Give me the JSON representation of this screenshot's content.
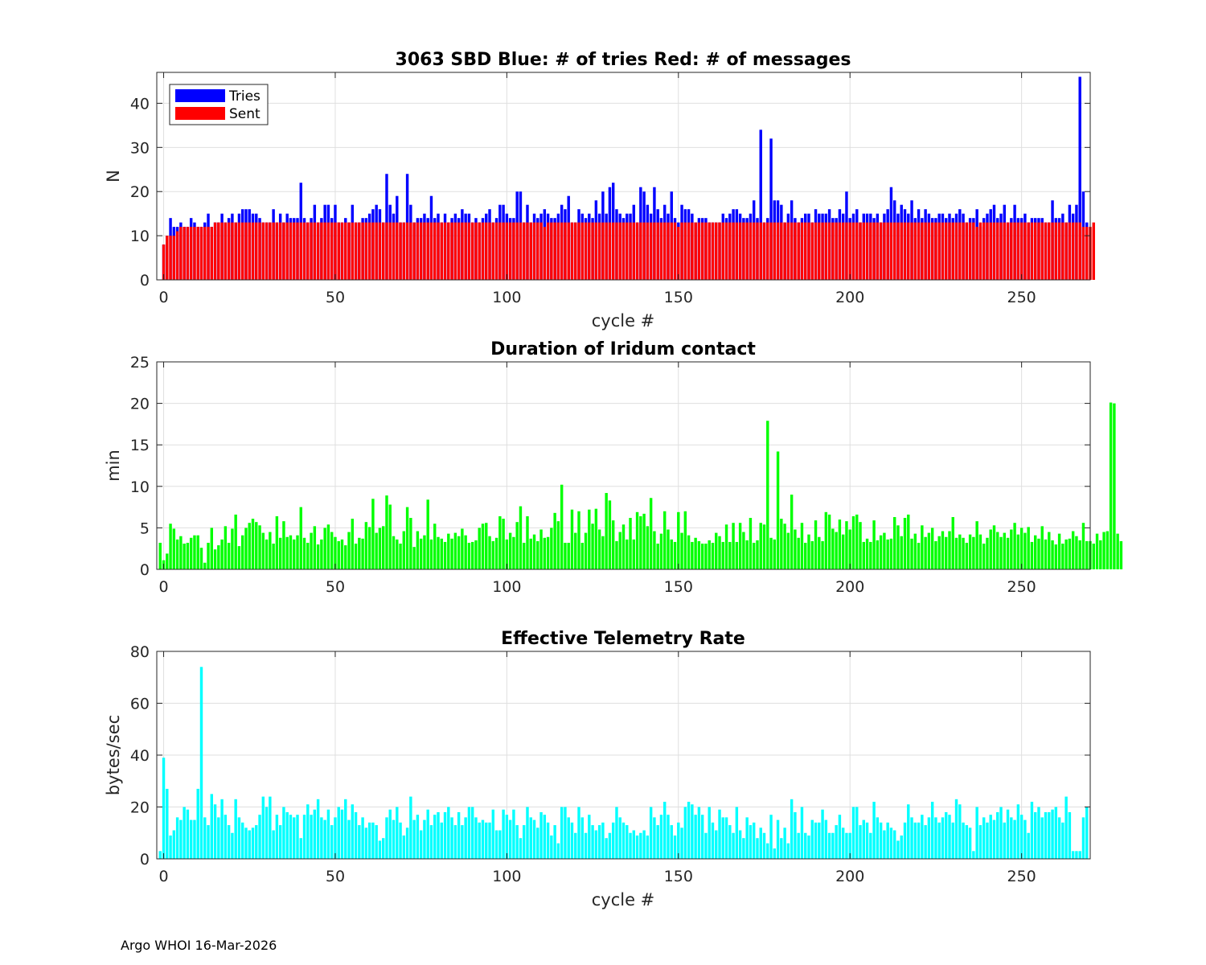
{
  "footer": "Argo WHOI 16-Mar-2026",
  "colors": {
    "tries": "#0000ff",
    "sent": "#ff0000",
    "duration": "#00ff00",
    "rate": "#00ffff"
  },
  "chart_data": [
    {
      "type": "bar",
      "title": "3063 SBD  Blue: # of tries   Red: # of messages",
      "xlabel": "cycle #",
      "ylabel": "N",
      "xlim": [
        -2,
        270
      ],
      "ylim": [
        0,
        47
      ],
      "xticks": [
        0,
        50,
        100,
        150,
        200,
        250
      ],
      "yticks": [
        0,
        10,
        20,
        30,
        40
      ],
      "grid": true,
      "legend": {
        "position": "top-left",
        "entries": [
          "Tries",
          "Sent"
        ]
      },
      "x_start": 0,
      "series": [
        {
          "name": "Tries",
          "color": "#0000ff",
          "values": [
            8,
            10,
            14,
            12,
            12,
            13,
            12,
            12,
            14,
            13,
            12,
            12,
            13,
            15,
            12,
            13,
            13,
            15,
            13,
            14,
            15,
            13,
            15,
            16,
            16,
            16,
            15,
            15,
            14,
            13,
            13,
            13,
            16,
            13,
            15,
            13,
            15,
            14,
            14,
            14,
            22,
            14,
            13,
            14,
            17,
            13,
            14,
            17,
            17,
            14,
            17,
            13,
            13,
            14,
            13,
            17,
            13,
            13,
            14,
            14,
            15,
            16,
            17,
            16,
            13,
            24,
            17,
            15,
            19,
            13,
            13,
            24,
            17,
            13,
            14,
            14,
            15,
            14,
            19,
            14,
            15,
            13,
            15,
            13,
            14,
            15,
            14,
            16,
            15,
            15,
            13,
            14,
            13,
            14,
            15,
            16,
            13,
            14,
            17,
            17,
            15,
            14,
            14,
            20,
            20,
            13,
            17,
            13,
            15,
            14,
            15,
            16,
            15,
            14,
            14,
            15,
            17,
            16,
            19,
            13,
            13,
            16,
            15,
            14,
            15,
            14,
            18,
            15,
            20,
            15,
            21,
            22,
            16,
            15,
            14,
            15,
            15,
            17,
            13,
            21,
            20,
            17,
            15,
            21,
            16,
            14,
            17,
            15,
            20,
            14,
            13,
            17,
            16,
            16,
            15,
            13,
            14,
            14,
            14,
            13,
            13,
            13,
            13,
            15,
            14,
            15,
            16,
            16,
            15,
            14,
            14,
            15,
            18,
            14,
            34,
            13,
            14,
            32,
            18,
            18,
            17,
            13,
            15,
            18,
            14,
            13,
            14,
            15,
            15,
            13,
            16,
            15,
            15,
            15,
            16,
            14,
            14,
            16,
            15,
            20,
            14,
            15,
            16,
            13,
            15,
            15,
            15,
            14,
            15,
            13,
            15,
            16,
            21,
            18,
            15,
            17,
            16,
            15,
            18,
            14,
            16,
            14,
            16,
            15,
            14,
            14,
            15,
            15,
            14,
            15,
            14,
            15,
            16,
            15,
            13,
            14,
            14,
            16,
            12,
            14,
            15,
            16,
            17,
            14,
            15,
            17,
            13,
            14,
            17,
            14,
            14,
            15,
            13,
            14,
            14,
            14,
            14,
            13,
            13,
            18,
            14,
            14,
            15,
            13,
            17,
            15,
            17,
            46,
            20,
            13
          ]
        },
        {
          "name": "Sent",
          "color": "#ff0000",
          "values": [
            8,
            10,
            10,
            10,
            11,
            12,
            12,
            12,
            12,
            12,
            12,
            12,
            12,
            12,
            12,
            13,
            13,
            13,
            13,
            13,
            13,
            13,
            13,
            13,
            13,
            13,
            13,
            13,
            13,
            13,
            13,
            13,
            13,
            13,
            13,
            13,
            13,
            13,
            13,
            13,
            13,
            13,
            13,
            13,
            13,
            13,
            13,
            13,
            13,
            13,
            13,
            13,
            13,
            13,
            13,
            13,
            13,
            13,
            13,
            13,
            13,
            13,
            13,
            13,
            13,
            13,
            13,
            13,
            13,
            13,
            13,
            13,
            13,
            13,
            13,
            13,
            13,
            13,
            13,
            13,
            13,
            13,
            13,
            13,
            13,
            13,
            13,
            13,
            13,
            13,
            13,
            13,
            13,
            13,
            13,
            13,
            13,
            13,
            13,
            13,
            13,
            13,
            13,
            13,
            13,
            13,
            13,
            13,
            13,
            13,
            13,
            12,
            13,
            13,
            13,
            13,
            13,
            13,
            13,
            13,
            13,
            13,
            13,
            13,
            13,
            13,
            13,
            13,
            13,
            13,
            13,
            13,
            13,
            13,
            13,
            13,
            13,
            13,
            13,
            13,
            13,
            13,
            13,
            13,
            13,
            13,
            13,
            13,
            13,
            13,
            12,
            13,
            13,
            13,
            13,
            13,
            13,
            13,
            13,
            13,
            13,
            13,
            13,
            13,
            13,
            13,
            13,
            13,
            13,
            13,
            13,
            13,
            13,
            13,
            13,
            13,
            13,
            13,
            13,
            13,
            13,
            13,
            13,
            13,
            13,
            13,
            13,
            13,
            13,
            13,
            13,
            13,
            13,
            13,
            13,
            13,
            13,
            13,
            13,
            13,
            13,
            13,
            13,
            13,
            13,
            13,
            13,
            13,
            13,
            13,
            13,
            13,
            13,
            13,
            13,
            13,
            13,
            13,
            13,
            13,
            13,
            13,
            13,
            13,
            13,
            13,
            13,
            13,
            13,
            13,
            13,
            13,
            13,
            13,
            13,
            13,
            13,
            12,
            13,
            13,
            13,
            13,
            13,
            13,
            13,
            13,
            13,
            13,
            13,
            13,
            13,
            13,
            13,
            13,
            13,
            13,
            13,
            13,
            13,
            13,
            13,
            13,
            13,
            13,
            13,
            13,
            13,
            13,
            12,
            12,
            12,
            13
          ]
        }
      ]
    },
    {
      "type": "bar",
      "title": "Duration of Iridum contact",
      "xlabel": "",
      "ylabel": "min",
      "xlim": [
        -2,
        270
      ],
      "ylim": [
        0,
        25
      ],
      "xticks": [
        0,
        50,
        100,
        150,
        200,
        250
      ],
      "yticks": [
        0,
        5,
        10,
        15,
        20,
        25
      ],
      "grid": true,
      "x_start": -1,
      "series": [
        {
          "name": "Duration",
          "color": "#00ff00",
          "values": [
            3.2,
            1.1,
            1.9,
            5.5,
            4.9,
            3.6,
            4.0,
            3.1,
            3.2,
            3.8,
            4.1,
            4.1,
            2.6,
            0.8,
            3.2,
            5.0,
            2.4,
            2.9,
            3.6,
            5.2,
            3.2,
            4.9,
            6.6,
            2.8,
            4.1,
            5.0,
            5.6,
            6.1,
            5.7,
            5.3,
            4.4,
            3.6,
            4.5,
            3.1,
            6.4,
            3.8,
            5.8,
            3.9,
            4.1,
            3.6,
            4.1,
            7.5,
            3.8,
            3.2,
            4.4,
            5.2,
            3.0,
            3.6,
            5.0,
            5.4,
            4.5,
            3.9,
            3.4,
            3.6,
            2.9,
            4.5,
            6.1,
            3.1,
            3.8,
            3.7,
            5.7,
            5.1,
            8.5,
            4.4,
            5.0,
            5.2,
            8.9,
            7.8,
            4.0,
            3.6,
            3.1,
            4.6,
            7.5,
            6.2,
            2.7,
            4.6,
            3.7,
            4.1,
            8.4,
            3.6,
            5.5,
            3.9,
            3.7,
            3.3,
            4.3,
            3.7,
            4.4,
            4.0,
            4.9,
            4.1,
            3.2,
            3.3,
            3.5,
            5.0,
            5.5,
            5.6,
            4.0,
            3.4,
            3.8,
            6.4,
            6.1,
            3.6,
            4.4,
            3.9,
            5.7,
            7.6,
            3.2,
            6.4,
            3.7,
            4.2,
            3.4,
            4.8,
            3.8,
            3.9,
            5.0,
            6.8,
            5.8,
            10.2,
            3.2,
            3.2,
            7.2,
            4.4,
            7.0,
            3.2,
            4.4,
            7.2,
            5.5,
            7.3,
            4.8,
            4.0,
            9.2,
            8.3,
            5.9,
            3.4,
            4.5,
            5.4,
            3.6,
            6.2,
            3.6,
            6.9,
            6.4,
            6.7,
            5.2,
            8.6,
            4.6,
            3.1,
            4.3,
            7.0,
            4.8,
            3.6,
            3.3,
            6.9,
            4.4,
            7.0,
            4.1,
            3.3,
            3.8,
            3.4,
            3.1,
            3.1,
            3.5,
            3.2,
            4.4,
            4.0,
            3.3,
            5.4,
            3.3,
            5.6,
            3.3,
            5.6,
            4.5,
            3.5,
            6.2,
            3.2,
            3.5,
            5.6,
            5.4,
            17.9,
            3.8,
            3.6,
            14.2,
            6.1,
            5.5,
            4.4,
            9.0,
            4.8,
            3.8,
            5.6,
            3.2,
            4.2,
            3.4,
            5.9,
            3.9,
            3.4,
            6.9,
            6.6,
            4.9,
            4.5,
            6.0,
            4.2,
            5.8,
            4.8,
            6.4,
            6.6,
            5.7,
            3.3,
            3.7,
            3.3,
            5.9,
            3.5,
            4.1,
            4.4,
            3.6,
            3.7,
            6.3,
            5.3,
            4.0,
            6.2,
            6.6,
            3.7,
            4.3,
            3.2,
            5.3,
            3.9,
            4.4,
            5.0,
            3.4,
            4.0,
            4.6,
            3.9,
            4.6,
            6.3,
            3.8,
            4.2,
            3.8,
            3.2,
            4.2,
            3.9,
            5.8,
            4.2,
            3.1,
            3.8,
            4.8,
            5.3,
            4.5,
            3.9,
            4.4,
            3.8,
            4.8,
            5.6,
            4.2,
            5.0,
            4.4,
            5.1,
            3.3,
            4.1,
            3.7,
            5.2,
            3.6,
            4.5,
            3.5,
            3.0,
            4.3,
            3.1,
            3.6,
            3.7,
            4.6,
            4.0,
            3.5,
            5.6,
            3.4,
            3.4,
            3.1,
            4.3,
            3.5,
            4.5,
            4.6,
            20.1,
            20.0,
            4.3,
            3.4
          ]
        }
      ]
    },
    {
      "type": "bar",
      "title": "Effective Telemetry Rate",
      "xlabel": "cycle #",
      "ylabel": "bytes/sec",
      "xlim": [
        -2,
        270
      ],
      "ylim": [
        0,
        80
      ],
      "xticks": [
        0,
        50,
        100,
        150,
        200,
        250
      ],
      "yticks": [
        0,
        20,
        40,
        60,
        80
      ],
      "grid": true,
      "x_start": -1,
      "series": [
        {
          "name": "Rate",
          "color": "#00ffff",
          "values": [
            3,
            39,
            27,
            9,
            11,
            16,
            15,
            20,
            19,
            15,
            15,
            27,
            74,
            16,
            13,
            25,
            21,
            16,
            23,
            17,
            13,
            10,
            23,
            16,
            14,
            12,
            11,
            12,
            13,
            17,
            24,
            20,
            24,
            11,
            17,
            13,
            20,
            18,
            17,
            16,
            17,
            8,
            17,
            21,
            17,
            19,
            23,
            16,
            15,
            19,
            13,
            16,
            20,
            19,
            23,
            15,
            21,
            18,
            13,
            16,
            12,
            14,
            14,
            13,
            7,
            8,
            16,
            19,
            15,
            20,
            14,
            9,
            12,
            24,
            15,
            17,
            11,
            15,
            19,
            13,
            17,
            18,
            14,
            18,
            20,
            16,
            13,
            18,
            13,
            16,
            20,
            20,
            16,
            14,
            15,
            14,
            14,
            19,
            11,
            11,
            19,
            17,
            15,
            19,
            13,
            8,
            13,
            20,
            16,
            15,
            12,
            18,
            17,
            14,
            9,
            13,
            6,
            20,
            20,
            16,
            14,
            10,
            20,
            16,
            10,
            17,
            13,
            11,
            13,
            14,
            8,
            10,
            14,
            20,
            16,
            14,
            13,
            10,
            11,
            9,
            10,
            11,
            9,
            20,
            16,
            13,
            17,
            22,
            17,
            13,
            9,
            14,
            12,
            20,
            22,
            21,
            17,
            20,
            17,
            10,
            20,
            14,
            11,
            19,
            16,
            16,
            13,
            10,
            20,
            11,
            8,
            16,
            13,
            14,
            8,
            12,
            10,
            6,
            17,
            4,
            15,
            8,
            12,
            6,
            23,
            18,
            10,
            20,
            10,
            9,
            15,
            14,
            14,
            19,
            15,
            10,
            10,
            13,
            17,
            12,
            10,
            10,
            20,
            20,
            13,
            15,
            14,
            10,
            22,
            16,
            14,
            11,
            14,
            12,
            11,
            7,
            9,
            14,
            21,
            16,
            14,
            14,
            17,
            13,
            16,
            22,
            16,
            14,
            16,
            18,
            17,
            14,
            23,
            21,
            14,
            13,
            12,
            3,
            20,
            13,
            16,
            14,
            17,
            15,
            18,
            20,
            14,
            19,
            16,
            15,
            21,
            17,
            15,
            10,
            22,
            18,
            20,
            16,
            18,
            18,
            19,
            20,
            16,
            14,
            24,
            18,
            3,
            3,
            3,
            16,
            20
          ]
        }
      ]
    }
  ]
}
